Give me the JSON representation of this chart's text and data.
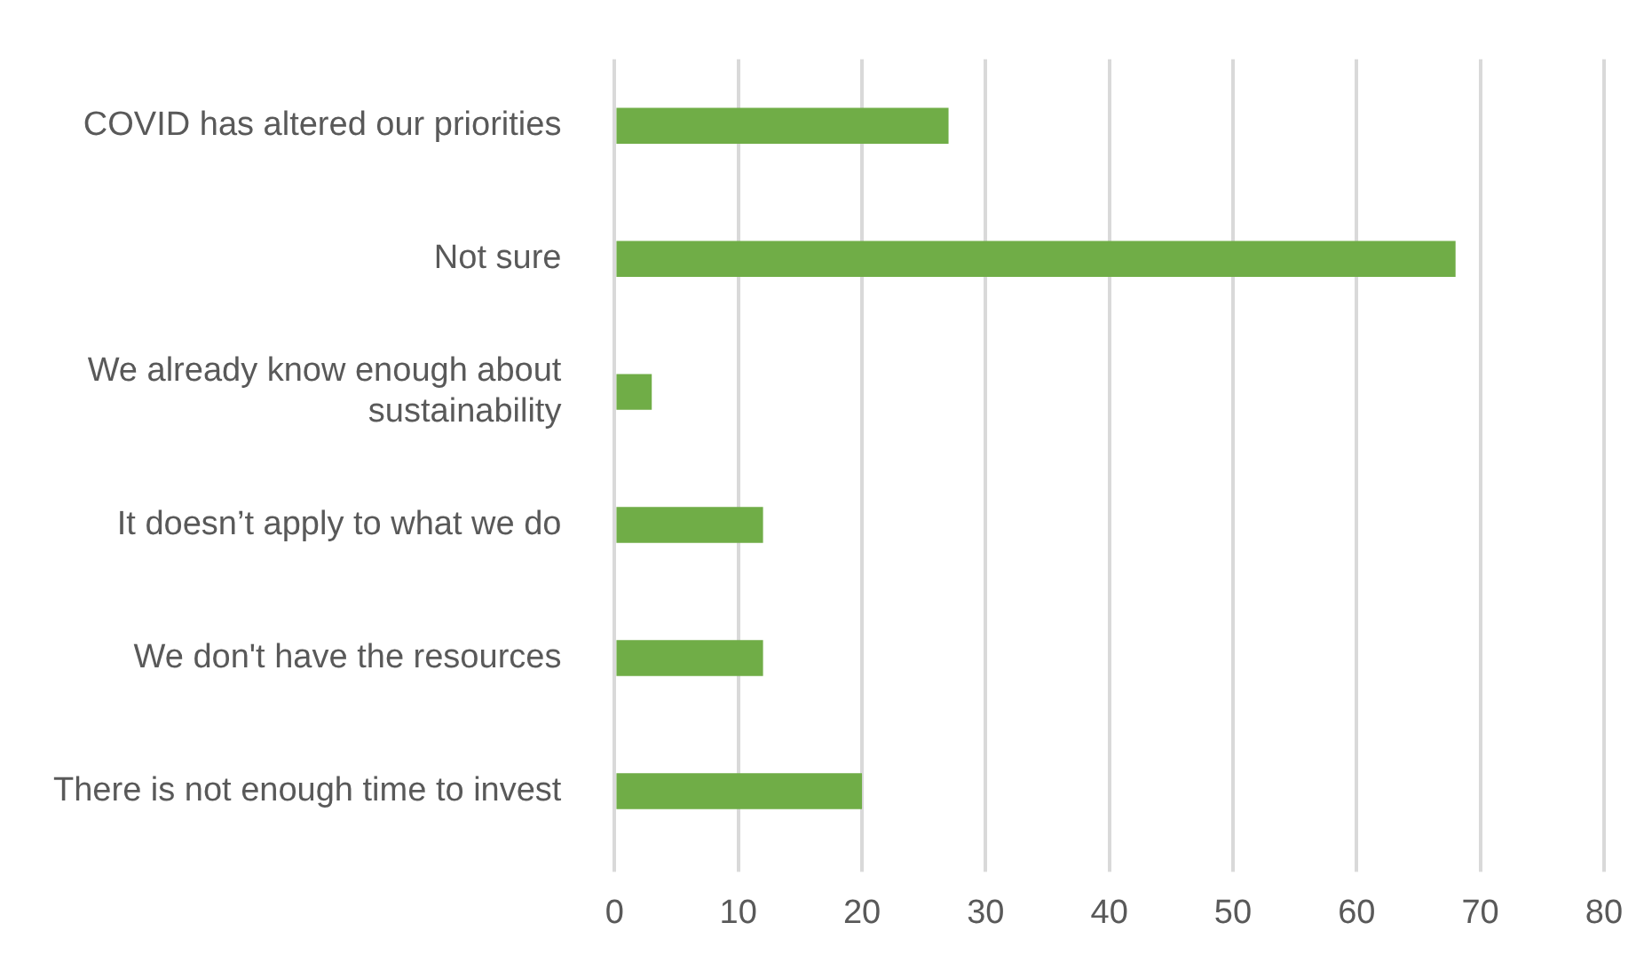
{
  "chart_data": {
    "type": "bar",
    "orientation": "horizontal",
    "categories": [
      "COVID has altered our priorities",
      "Not sure",
      "We already know enough about sustainability",
      "It doesn’t apply to what we do",
      "We don't have the resources",
      "There is not enough time to invest"
    ],
    "values": [
      27,
      68,
      3,
      12,
      12,
      20
    ],
    "color": "#70ad47",
    "xlim": [
      0,
      80
    ],
    "xticks": [
      0,
      10,
      20,
      30,
      40,
      50,
      60,
      70,
      80
    ],
    "grid": "x"
  }
}
